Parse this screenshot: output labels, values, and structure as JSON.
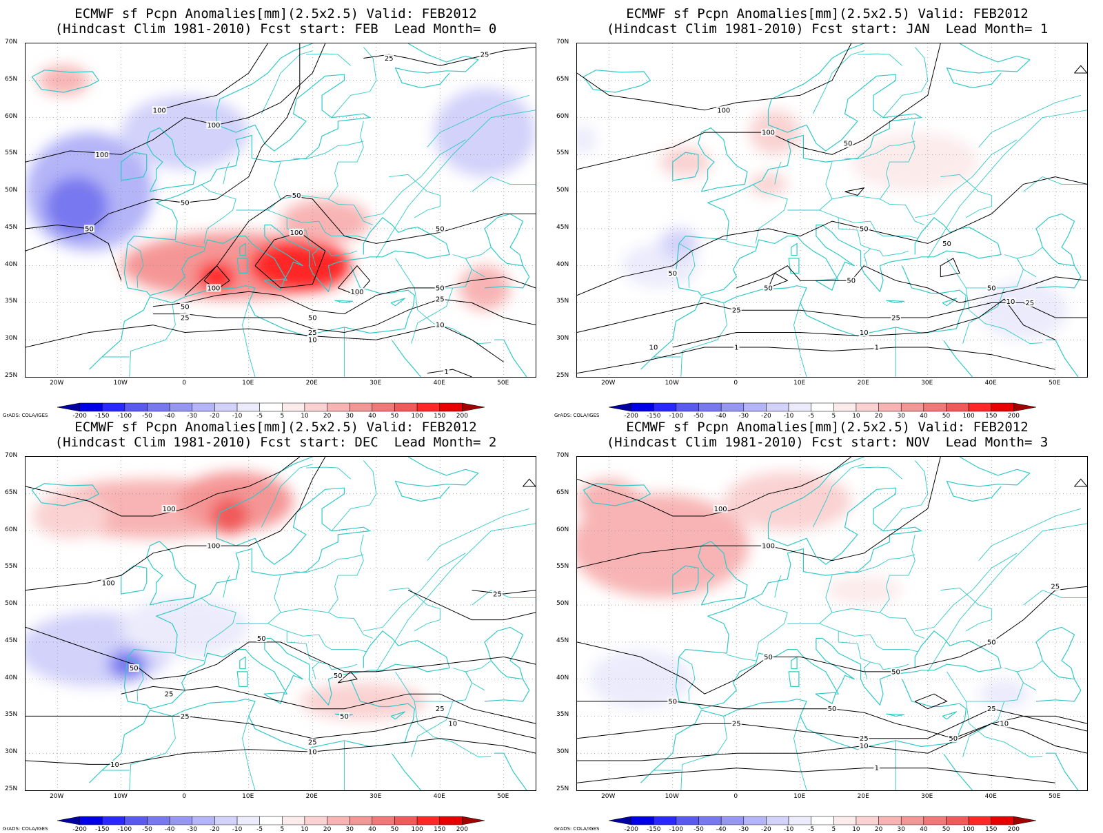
{
  "panels": [
    {
      "title_line1": "ECMWF sf Pcpn Anomalies[mm](2.5x2.5) Valid: FEB2012",
      "title_line2": "(Hindcast Clim 1981-2010) Fcst start: FEB  Lead Month= 0",
      "anomaly_blobs": [
        {
          "lon": 8,
          "lat": 40,
          "rx": 18,
          "ry": 4.5,
          "value": 30
        },
        {
          "lon": 18,
          "lat": 40,
          "rx": 8,
          "ry": 3.5,
          "value": 100
        },
        {
          "lon": 5,
          "lat": 38.5,
          "rx": 3,
          "ry": 2,
          "value": 100
        },
        {
          "lon": 22,
          "lat": 46,
          "rx": 7,
          "ry": 3,
          "value": 20
        },
        {
          "lon": -15,
          "lat": 50,
          "rx": 10,
          "ry": 8,
          "value": -30
        },
        {
          "lon": -17,
          "lat": 48,
          "rx": 5,
          "ry": 4,
          "value": -50
        },
        {
          "lon": 0,
          "lat": 58,
          "rx": 10,
          "ry": 5,
          "value": -20
        },
        {
          "lon": 47,
          "lat": 58,
          "rx": 8,
          "ry": 6,
          "value": -20
        },
        {
          "lon": -19,
          "lat": 65,
          "rx": 4,
          "ry": 2,
          "value": 20
        },
        {
          "lon": 47,
          "lat": 37,
          "rx": 4,
          "ry": 3,
          "value": 20
        }
      ],
      "contour_labels": [
        {
          "text": "100",
          "lon": -4,
          "lat": 61
        },
        {
          "text": "100",
          "lon": 4.5,
          "lat": 59
        },
        {
          "text": "100",
          "lon": -13,
          "lat": 55
        },
        {
          "text": "50",
          "lon": -15,
          "lat": 45
        },
        {
          "text": "50",
          "lon": 0,
          "lat": 48.5
        },
        {
          "text": "50",
          "lon": 17.5,
          "lat": 49.5
        },
        {
          "text": "100",
          "lon": 17.5,
          "lat": 44.5
        },
        {
          "text": "100",
          "lon": 4.5,
          "lat": 37
        },
        {
          "text": "100",
          "lon": 27,
          "lat": 36.5
        },
        {
          "text": "50",
          "lon": 0,
          "lat": 34.5
        },
        {
          "text": "25",
          "lon": 0,
          "lat": 33
        },
        {
          "text": "50",
          "lon": 20,
          "lat": 33
        },
        {
          "text": "25",
          "lon": 20,
          "lat": 31
        },
        {
          "text": "10",
          "lon": 20,
          "lat": 30
        },
        {
          "text": "50",
          "lon": 40,
          "lat": 45
        },
        {
          "text": "50",
          "lon": 40,
          "lat": 37
        },
        {
          "text": "25",
          "lon": 40,
          "lat": 35.5
        },
        {
          "text": "10",
          "lon": 40,
          "lat": 32
        },
        {
          "text": "25",
          "lon": 32,
          "lat": 68
        },
        {
          "text": "25",
          "lon": 47,
          "lat": 68.5
        },
        {
          "text": "1",
          "lon": 41,
          "lat": 25.7
        }
      ]
    },
    {
      "title_line1": "ECMWF sf Pcpn Anomalies[mm](2.5x2.5) Valid: FEB2012",
      "title_line2": "(Hindcast Clim 1981-2010) Fcst start: JAN  Lead Month= 1",
      "anomaly_blobs": [
        {
          "lon": -8,
          "lat": 54,
          "rx": 4,
          "ry": 2,
          "value": 10
        },
        {
          "lon": 6,
          "lat": 58,
          "rx": 4,
          "ry": 3,
          "value": 10
        },
        {
          "lon": 28,
          "lat": 54,
          "rx": 10,
          "ry": 4,
          "value": 5
        },
        {
          "lon": 5,
          "lat": 51,
          "rx": 3,
          "ry": 1.5,
          "value": 10
        },
        {
          "lon": -12,
          "lat": 40,
          "rx": 6,
          "ry": 3,
          "value": -10
        },
        {
          "lon": 45,
          "lat": 34,
          "rx": 7,
          "ry": 4,
          "value": -10
        },
        {
          "lon": -24,
          "lat": 57,
          "rx": 2,
          "ry": 2,
          "value": -10
        },
        {
          "lon": -9,
          "lat": 43,
          "rx": 3,
          "ry": 2,
          "value": -20
        }
      ],
      "contour_labels": [
        {
          "text": "100",
          "lon": -2,
          "lat": 61
        },
        {
          "text": "100",
          "lon": 5,
          "lat": 58
        },
        {
          "text": "50",
          "lon": 17.5,
          "lat": 56.5
        },
        {
          "text": "50",
          "lon": 20,
          "lat": 45
        },
        {
          "text": "50",
          "lon": 33,
          "lat": 43
        },
        {
          "text": "50",
          "lon": -10,
          "lat": 39
        },
        {
          "text": "50",
          "lon": 5,
          "lat": 37
        },
        {
          "text": "50",
          "lon": 18,
          "lat": 38
        },
        {
          "text": "50",
          "lon": 40,
          "lat": 37
        },
        {
          "text": "25",
          "lon": 0,
          "lat": 34
        },
        {
          "text": "25",
          "lon": 25,
          "lat": 33
        },
        {
          "text": "25",
          "lon": 46,
          "lat": 35
        },
        {
          "text": "10",
          "lon": 43,
          "lat": 35.2
        },
        {
          "text": "10",
          "lon": 20,
          "lat": 31
        },
        {
          "text": "10",
          "lon": -13,
          "lat": 29
        },
        {
          "text": "1",
          "lon": 0,
          "lat": 29
        },
        {
          "text": "1",
          "lon": 22,
          "lat": 29
        }
      ]
    },
    {
      "title_line1": "ECMWF sf Pcpn Anomalies[mm](2.5x2.5) Valid: FEB2012",
      "title_line2": "(Hindcast Clim 1981-2010) Fcst start: DEC  Lead Month= 2",
      "anomaly_blobs": [
        {
          "lon": -5,
          "lat": 63,
          "rx": 18,
          "ry": 4,
          "value": 20
        },
        {
          "lon": 8,
          "lat": 64,
          "rx": 9,
          "ry": 4,
          "value": 30
        },
        {
          "lon": 7,
          "lat": 62,
          "rx": 3,
          "ry": 2.5,
          "value": 50
        },
        {
          "lon": -18,
          "lat": 62,
          "rx": 6,
          "ry": 3,
          "value": 10
        },
        {
          "lon": 28,
          "lat": 37,
          "rx": 10,
          "ry": 2.5,
          "value": 10
        },
        {
          "lon": -14,
          "lat": 44,
          "rx": 12,
          "ry": 5,
          "value": -20
        },
        {
          "lon": -9,
          "lat": 42,
          "rx": 3,
          "ry": 2,
          "value": -50
        },
        {
          "lon": 0,
          "lat": 47,
          "rx": 10,
          "ry": 4,
          "value": -10
        }
      ],
      "contour_labels": [
        {
          "text": "100",
          "lon": -2.5,
          "lat": 63
        },
        {
          "text": "100",
          "lon": 4.5,
          "lat": 58
        },
        {
          "text": "100",
          "lon": -12,
          "lat": 53
        },
        {
          "text": "50",
          "lon": -8,
          "lat": 41.5
        },
        {
          "text": "50",
          "lon": 12,
          "lat": 45.5
        },
        {
          "text": "50",
          "lon": 24,
          "lat": 40.5
        },
        {
          "text": "50",
          "lon": 25,
          "lat": 35
        },
        {
          "text": "25",
          "lon": -2.5,
          "lat": 38
        },
        {
          "text": "25",
          "lon": 0,
          "lat": 35
        },
        {
          "text": "25",
          "lon": 20,
          "lat": 31.5
        },
        {
          "text": "10",
          "lon": 20,
          "lat": 30.2
        },
        {
          "text": "25",
          "lon": 40,
          "lat": 36
        },
        {
          "text": "10",
          "lon": 42,
          "lat": 34
        },
        {
          "text": "25",
          "lon": 49,
          "lat": 51.5
        },
        {
          "text": "10",
          "lon": -11,
          "lat": 28.5
        }
      ]
    },
    {
      "title_line1": "ECMWF sf Pcpn Anomalies[mm](2.5x2.5) Valid: FEB2012",
      "title_line2": "(Hindcast Clim 1981-2010) Fcst start: NOV  Lead Month= 3",
      "anomaly_blobs": [
        {
          "lon": -12,
          "lat": 58,
          "rx": 14,
          "ry": 7,
          "value": 20
        },
        {
          "lon": 8,
          "lat": 64,
          "rx": 10,
          "ry": 4,
          "value": 10
        },
        {
          "lon": -20,
          "lat": 64,
          "rx": 5,
          "ry": 3,
          "value": 20
        },
        {
          "lon": 20,
          "lat": 52,
          "rx": 6,
          "ry": 2,
          "value": 5
        },
        {
          "lon": -15,
          "lat": 40,
          "rx": 8,
          "ry": 4,
          "value": -10
        },
        {
          "lon": 38,
          "lat": 48,
          "rx": 8,
          "ry": 3,
          "value": -5
        },
        {
          "lon": 42,
          "lat": 38,
          "rx": 4,
          "ry": 2,
          "value": -10
        }
      ],
      "contour_labels": [
        {
          "text": "100",
          "lon": -2.5,
          "lat": 63
        },
        {
          "text": "100",
          "lon": 5,
          "lat": 58
        },
        {
          "text": "25",
          "lon": 50,
          "lat": 52.5
        },
        {
          "text": "50",
          "lon": 5,
          "lat": 43
        },
        {
          "text": "50",
          "lon": 25,
          "lat": 41
        },
        {
          "text": "50",
          "lon": 40,
          "lat": 45
        },
        {
          "text": "50",
          "lon": -10,
          "lat": 37
        },
        {
          "text": "50",
          "lon": 15,
          "lat": 36
        },
        {
          "text": "50",
          "lon": 34,
          "lat": 32
        },
        {
          "text": "25",
          "lon": 0,
          "lat": 34
        },
        {
          "text": "25",
          "lon": 20,
          "lat": 32
        },
        {
          "text": "25",
          "lon": 40,
          "lat": 36
        },
        {
          "text": "10",
          "lon": 20,
          "lat": 31
        },
        {
          "text": "10",
          "lon": 42,
          "lat": 34
        },
        {
          "text": "1",
          "lon": 22,
          "lat": 28
        }
      ]
    }
  ],
  "map_extent": {
    "lon_min": -25,
    "lon_max": 55,
    "lat_min": 25,
    "lat_max": 70
  },
  "lat_labels": [
    "70N",
    "65N",
    "60N",
    "55N",
    "50N",
    "45N",
    "40N",
    "35N",
    "30N",
    "25N"
  ],
  "lon_labels": [
    "20W",
    "10W",
    "0",
    "10E",
    "20E",
    "30E",
    "40E",
    "50E"
  ],
  "colorbar": {
    "labels": [
      "-200",
      "-150",
      "-100",
      "-50",
      "-40",
      "-30",
      "-20",
      "-10",
      "-5",
      "5",
      "10",
      "20",
      "30",
      "40",
      "50",
      "100",
      "150",
      "200"
    ],
    "colors": [
      "#0000a0",
      "#0000e6",
      "#2828ff",
      "#5a5af0",
      "#7878f0",
      "#9696f5",
      "#b4b4f8",
      "#d2d2fa",
      "#ebebfc",
      "#ffffff",
      "#fcebeb",
      "#fad2d2",
      "#f8b4b4",
      "#f59696",
      "#f07878",
      "#f05a5a",
      "#ff2828",
      "#e60000",
      "#a00000"
    ]
  },
  "credit": "GrADS: COLA/IGES",
  "colors": {
    "coast": "#30c8c8",
    "contour": "#000000",
    "grid": "#888888"
  }
}
